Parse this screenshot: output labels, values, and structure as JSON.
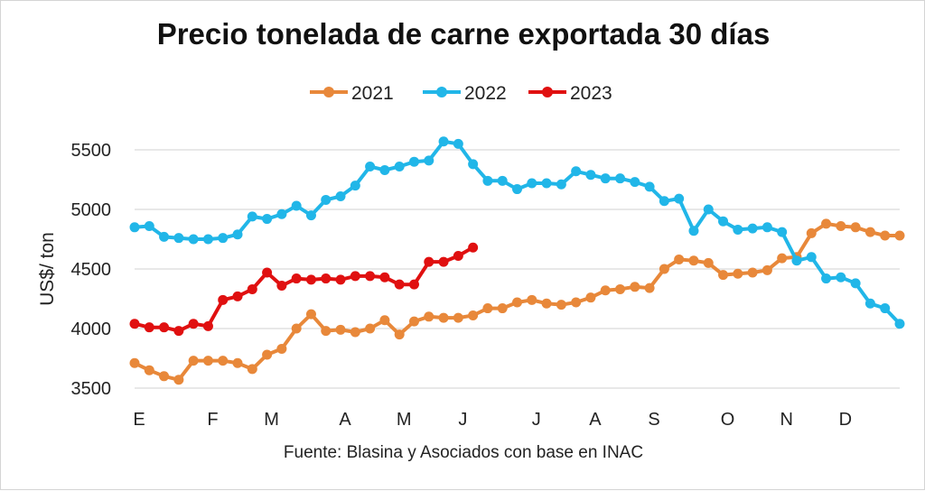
{
  "chart_data": {
    "type": "line",
    "title": "Precio tonelada de carne exportada 30 días",
    "ylabel": "US$/ ton",
    "xlabel": "",
    "source": "Fuente: Blasina y Asociados con base en INAC",
    "ylim": [
      3500,
      5700
    ],
    "yticks": [
      3500,
      4000,
      4500,
      5000,
      5500
    ],
    "grid": "horizontal",
    "legend_position": "top",
    "x_ticks": [
      {
        "label": "E",
        "week": 0
      },
      {
        "label": "F",
        "week": 5
      },
      {
        "label": "M",
        "week": 9
      },
      {
        "label": "A",
        "week": 14
      },
      {
        "label": "M",
        "week": 18
      },
      {
        "label": "J",
        "week": 22
      },
      {
        "label": "J",
        "week": 27
      },
      {
        "label": "A",
        "week": 31
      },
      {
        "label": "S",
        "week": 35
      },
      {
        "label": "O",
        "week": 40
      },
      {
        "label": "N",
        "week": 44
      },
      {
        "label": "D",
        "week": 48
      }
    ],
    "series": [
      {
        "name": "2021",
        "color": "#e8883a",
        "values": [
          3710,
          3650,
          3600,
          3570,
          3730,
          3730,
          3730,
          3710,
          3660,
          3780,
          3830,
          4000,
          4120,
          3980,
          3990,
          3970,
          4000,
          4070,
          3950,
          4060,
          4100,
          4090,
          4090,
          4110,
          4170,
          4170,
          4220,
          4240,
          4210,
          4200,
          4220,
          4260,
          4320,
          4330,
          4350,
          4340,
          4500,
          4580,
          4570,
          4550,
          4450,
          4460,
          4470,
          4490,
          4590,
          4600,
          4800,
          4880,
          4860,
          4850,
          4810,
          4780,
          4780
        ]
      },
      {
        "name": "2022",
        "color": "#21b6e8",
        "values": [
          4850,
          4860,
          4770,
          4760,
          4750,
          4750,
          4760,
          4790,
          4940,
          4920,
          4960,
          5030,
          4950,
          5080,
          5110,
          5200,
          5360,
          5330,
          5360,
          5400,
          5410,
          5570,
          5550,
          5380,
          5240,
          5240,
          5170,
          5220,
          5220,
          5210,
          5320,
          5290,
          5260,
          5260,
          5230,
          5190,
          5070,
          5090,
          4820,
          5000,
          4900,
          4830,
          4840,
          4850,
          4810,
          4570,
          4600,
          4420,
          4430,
          4380,
          4210,
          4170,
          4040
        ]
      },
      {
        "name": "2023",
        "color": "#e01010",
        "values": [
          4040,
          4010,
          4010,
          3980,
          4040,
          4020,
          4240,
          4270,
          4330,
          4470,
          4360,
          4420,
          4410,
          4420,
          4410,
          4440,
          4440,
          4430,
          4370,
          4370,
          4560,
          4560,
          4610,
          4680
        ]
      }
    ]
  }
}
